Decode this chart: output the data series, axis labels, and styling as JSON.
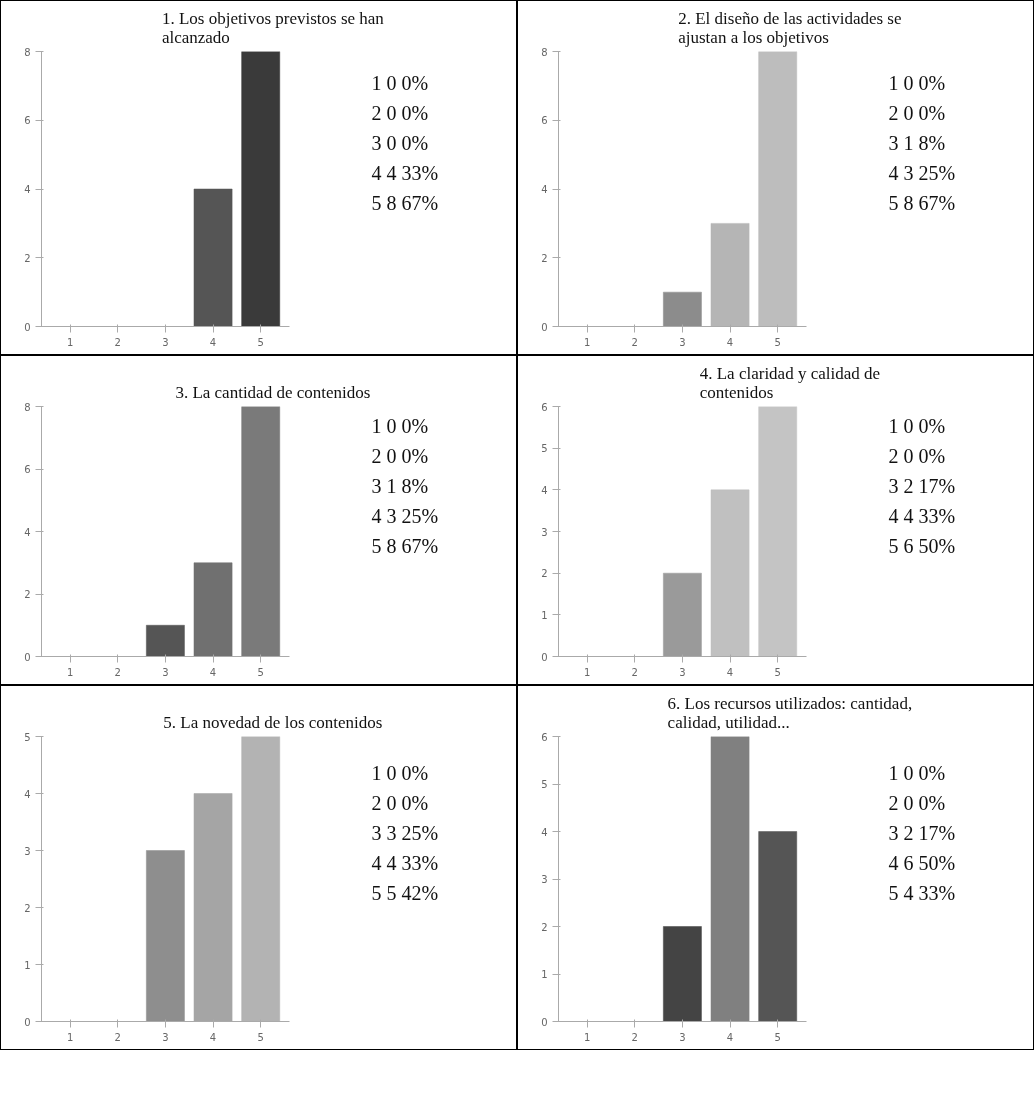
{
  "chart_data": [
    {
      "type": "bar",
      "title": "1.  Los objetivos previstos se han\nalcanzado",
      "categories": [
        "1",
        "2",
        "3",
        "4",
        "5"
      ],
      "values": [
        0,
        0,
        0,
        4,
        8
      ],
      "colors": [
        "#555555",
        "#555555",
        "#555555",
        "#555555",
        "#3a3a3a"
      ],
      "ylim": [
        0,
        8
      ],
      "yticks": [
        0,
        2,
        4,
        6,
        8
      ],
      "grid": false,
      "annotations": [
        "1  0 0%",
        "2  0 0%",
        "3  0 0%",
        "4  4 33%",
        "5  8 67%"
      ]
    },
    {
      "type": "bar",
      "title": "2.  El diseño de las actividades se\najustan a los objetivos",
      "categories": [
        "1",
        "2",
        "3",
        "4",
        "5"
      ],
      "values": [
        0,
        0,
        1,
        3,
        8
      ],
      "colors": [
        "#8c8c8c",
        "#8c8c8c",
        "#8c8c8c",
        "#b5b5b5",
        "#bdbdbd"
      ],
      "ylim": [
        0,
        8
      ],
      "yticks": [
        0,
        2,
        4,
        6,
        8
      ],
      "grid": false,
      "annotations": [
        "1  0 0%",
        "2  0 0%",
        "3  1 8%",
        "4  3 25%",
        "5  8 67%"
      ]
    },
    {
      "type": "bar",
      "title": "3.  La cantidad de contenidos",
      "categories": [
        "1",
        "2",
        "3",
        "4",
        "5"
      ],
      "values": [
        0,
        0,
        1,
        3,
        8
      ],
      "colors": [
        "#555555",
        "#555555",
        "#555555",
        "#707070",
        "#7a7a7a"
      ],
      "ylim": [
        0,
        8
      ],
      "yticks": [
        0,
        2,
        4,
        6,
        8
      ],
      "grid": false,
      "annotations": [
        "1  0 0%",
        "2  0 0%",
        "3  1 8%",
        "4  3 25%",
        "5  8 67%"
      ]
    },
    {
      "type": "bar",
      "title": "4.  La claridad y calidad de\ncontenidos",
      "categories": [
        "1",
        "2",
        "3",
        "4",
        "5"
      ],
      "values": [
        0,
        0,
        2,
        4,
        6
      ],
      "colors": [
        "#9a9a9a",
        "#9a9a9a",
        "#9a9a9a",
        "#c0c0c0",
        "#c4c4c4"
      ],
      "ylim": [
        0,
        6
      ],
      "yticks": [
        0,
        1,
        2,
        3,
        4,
        5,
        6
      ],
      "grid": false,
      "annotations": [
        "1  0 0%",
        "2  0 0%",
        "3  2 17%",
        "4  4 33%",
        "5  6 50%"
      ]
    },
    {
      "type": "bar",
      "title": "5.  La novedad de los contenidos",
      "categories": [
        "1",
        "2",
        "3",
        "4",
        "5"
      ],
      "values": [
        0,
        0,
        3,
        4,
        5
      ],
      "colors": [
        "#8e8e8e",
        "#8e8e8e",
        "#8e8e8e",
        "#a5a5a5",
        "#b3b3b3"
      ],
      "ylim": [
        0,
        5
      ],
      "yticks": [
        0,
        1,
        2,
        3,
        4,
        5
      ],
      "grid": false,
      "annotations": [
        "1  0 0%",
        "2  0 0%",
        "3  3 25%",
        "4  4 33%",
        "5  5 42%"
      ]
    },
    {
      "type": "bar",
      "title": "6.  Los recursos utilizados: cantidad,\ncalidad, utilidad...",
      "categories": [
        "1",
        "2",
        "3",
        "4",
        "5"
      ],
      "values": [
        0,
        0,
        2,
        6,
        4
      ],
      "colors": [
        "#444444",
        "#444444",
        "#444444",
        "#808080",
        "#555555"
      ],
      "ylim": [
        0,
        6
      ],
      "yticks": [
        0,
        1,
        2,
        3,
        4,
        5,
        6
      ],
      "grid": false,
      "annotations": [
        "1  0 0%",
        "2  0 0%",
        "3  2 17%",
        "4  6 50%",
        "5  4 33%"
      ]
    }
  ]
}
